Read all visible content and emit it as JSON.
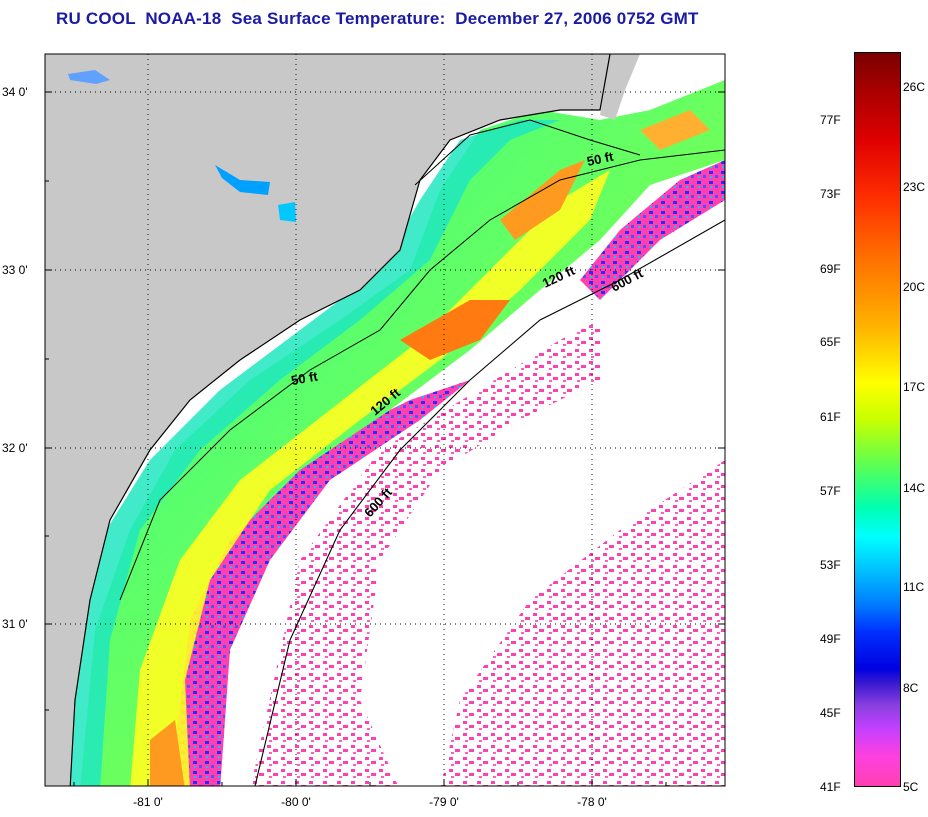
{
  "title": "RU COOL  NOAA-18  Sea Surface Temperature:  December 27, 2006 0752 GMT",
  "map": {
    "lat_ticks": [
      "34 0'",
      "33 0'",
      "32 0'",
      "31 0'"
    ],
    "lon_ticks": [
      "-81 0'",
      "-80 0'",
      "-79 0'",
      "-78 0'"
    ],
    "isobath_labels": [
      "50 ft",
      "120 ft",
      "600 ft",
      "50 ft",
      "120 ft",
      "600 ft"
    ]
  },
  "colorbar": {
    "fahrenheit": [
      "77F",
      "73F",
      "69F",
      "65F",
      "61F",
      "57F",
      "53F",
      "49F",
      "45F",
      "41F"
    ],
    "celsius": [
      "26C",
      "23C",
      "20C",
      "17C",
      "14C",
      "11C",
      "8C",
      "5C"
    ]
  },
  "colors": {
    "title": "#1a1aa6",
    "land": "#c8c8c8",
    "cloud": "#ffffff",
    "warm": "#ff8000",
    "cold": "#ff40b0"
  }
}
